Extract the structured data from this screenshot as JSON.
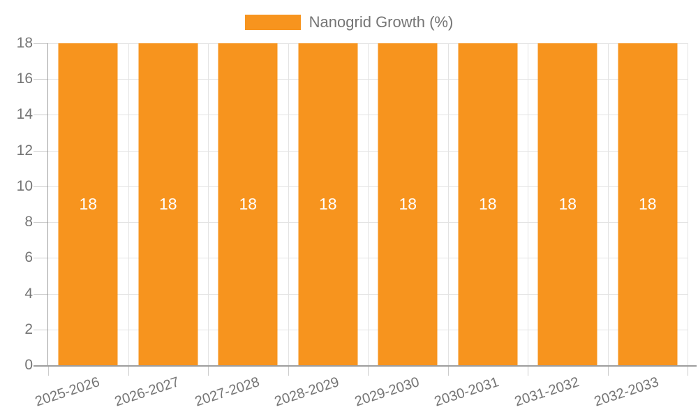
{
  "colors": {
    "bar": "#F7941E",
    "grid": "#E3E3E3",
    "tick": "#CCCCCC",
    "axis": "#9E9E9E",
    "axis_text": "#757575",
    "bar_label_text": "#FFFFFF"
  },
  "chart_data": {
    "type": "bar",
    "categories": [
      "2025-2026",
      "2026-2027",
      "2027-2028",
      "2028-2029",
      "2029-2030",
      "2030-2031",
      "2031-2032",
      "2032-2033"
    ],
    "series": [
      {
        "name": "Nanogrid Growth (%)",
        "values": [
          18,
          18,
          18,
          18,
          18,
          18,
          18,
          18
        ]
      }
    ],
    "bar_value_labels": [
      "18",
      "18",
      "18",
      "18",
      "18",
      "18",
      "18",
      "18"
    ],
    "ylim": [
      0,
      18
    ],
    "yticks": [
      0,
      2,
      4,
      6,
      8,
      10,
      12,
      14,
      16,
      18
    ],
    "grid": true,
    "legend_position": "top"
  }
}
